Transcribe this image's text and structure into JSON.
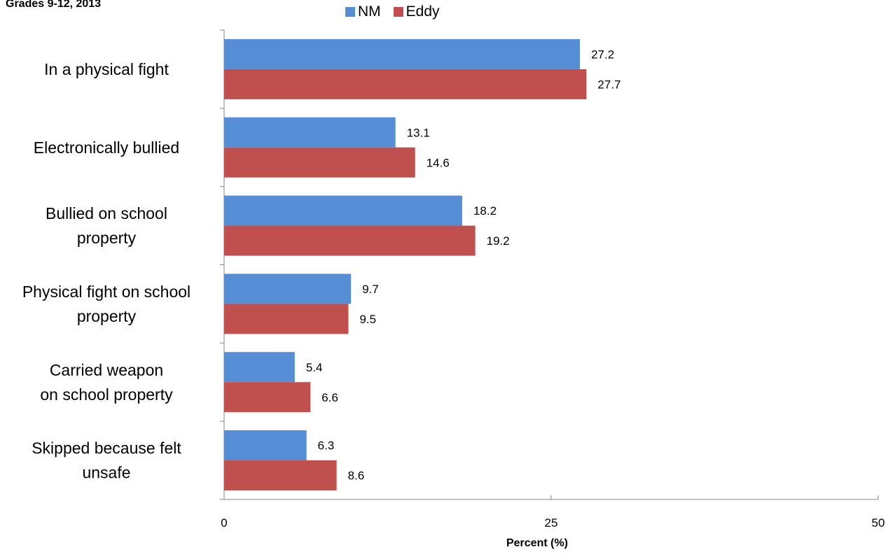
{
  "chart_data": {
    "type": "bar",
    "orientation": "horizontal",
    "subtitle": "Grades 9-12, 2013",
    "categories": [
      "In a physical fight",
      "Electronically bullied",
      "Bullied on school property",
      "Physical fight on school property",
      "Carried weapon on school property",
      "Skipped because felt unsafe"
    ],
    "category_lines": [
      [
        "In a physical fight"
      ],
      [
        "Electronically bullied"
      ],
      [
        "Bullied on school",
        "property"
      ],
      [
        "Physical fight on school",
        "property"
      ],
      [
        "Carried weapon",
        "on school property"
      ],
      [
        "Skipped because felt",
        "unsafe"
      ]
    ],
    "series": [
      {
        "name": "NM",
        "color": "#558ed5",
        "values": [
          27.2,
          13.1,
          18.2,
          9.7,
          5.4,
          6.3
        ]
      },
      {
        "name": "Eddy",
        "color": "#c0504d",
        "values": [
          27.7,
          14.6,
          19.2,
          9.5,
          6.6,
          8.6
        ]
      }
    ],
    "xlabel": "Percent (%)",
    "ylabel": "",
    "xlim": [
      0,
      50
    ],
    "xticks": [
      "0",
      "25",
      "50"
    ],
    "grid": false,
    "legend": "top-center",
    "value_labels": true
  }
}
